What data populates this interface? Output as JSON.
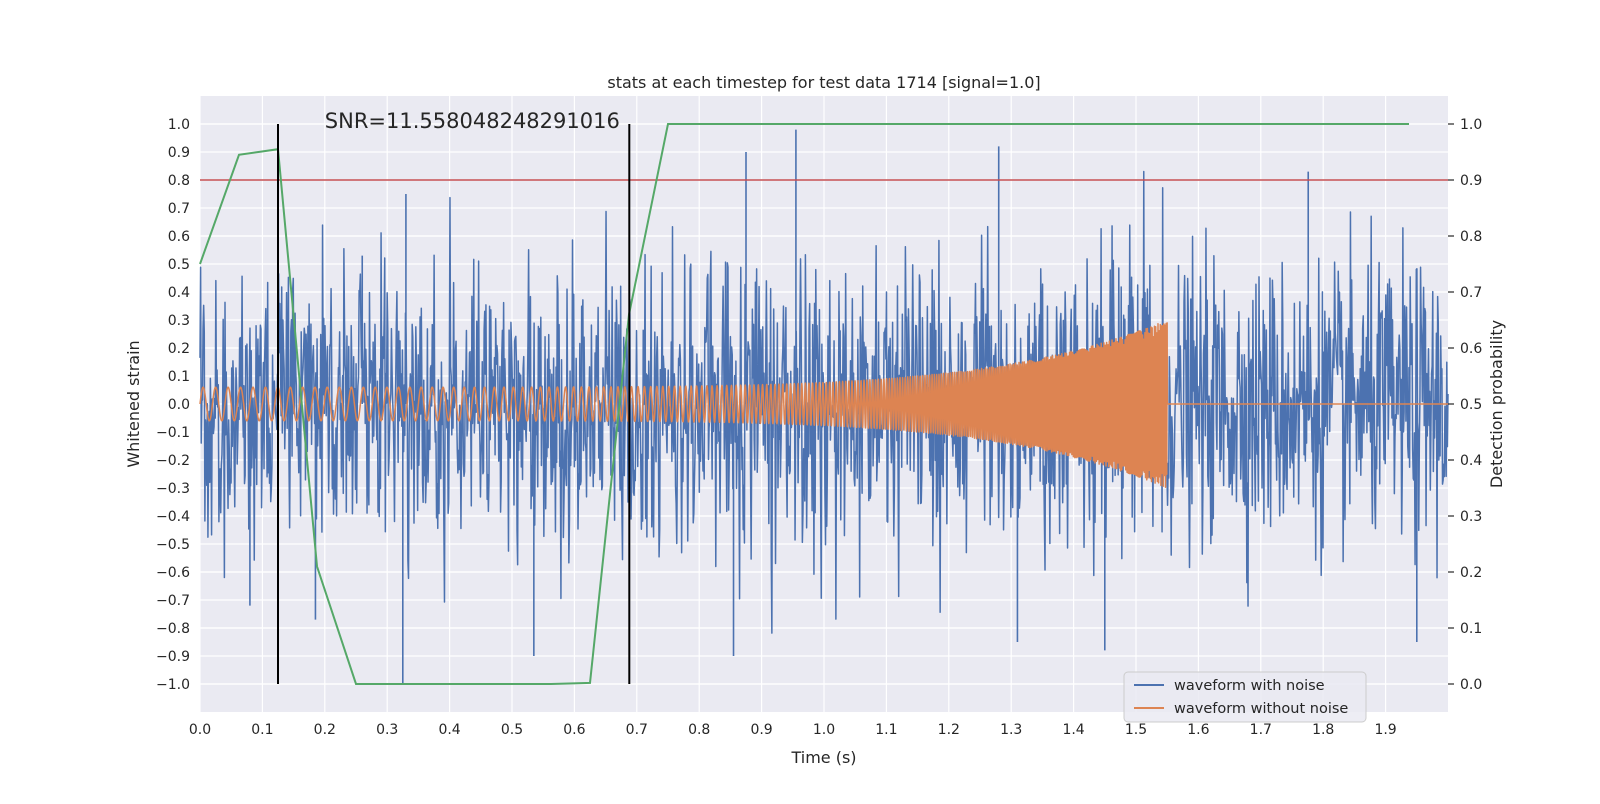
{
  "chart_data": {
    "type": "line",
    "title": "stats at each timestep for test data 1714 [signal=1.0]",
    "xlabel": "Time (s)",
    "ylabel": "Whitened strain",
    "y2label": "Detection probability",
    "xlim": [
      0.0,
      2.0
    ],
    "ylim": [
      -1.1,
      1.1
    ],
    "y2lim": [
      -0.05,
      1.05
    ],
    "x_ticks": [
      0.0,
      0.1,
      0.2,
      0.3,
      0.4,
      0.5,
      0.6,
      0.7,
      0.8,
      0.9,
      1.0,
      1.1,
      1.2,
      1.3,
      1.4,
      1.5,
      1.6,
      1.7,
      1.8,
      1.9
    ],
    "x_tick_labels": [
      "0.0",
      "0.1",
      "0.2",
      "0.3",
      "0.4",
      "0.5",
      "0.6",
      "0.7",
      "0.8",
      "0.9",
      "1.0",
      "1.1",
      "1.2",
      "1.3",
      "1.4",
      "1.5",
      "1.6",
      "1.7",
      "1.8",
      "1.9"
    ],
    "y_ticks": [
      -1.0,
      -0.9,
      -0.8,
      -0.7,
      -0.6,
      -0.5,
      -0.4,
      -0.3,
      -0.2,
      -0.1,
      0.0,
      0.1,
      0.2,
      0.3,
      0.4,
      0.5,
      0.6,
      0.7,
      0.8,
      0.9,
      1.0
    ],
    "y_tick_labels": [
      "−1.0",
      "−0.9",
      "−0.8",
      "−0.7",
      "−0.6",
      "−0.5",
      "−0.4",
      "−0.3",
      "−0.2",
      "−0.1",
      "0.0",
      "0.1",
      "0.2",
      "0.3",
      "0.4",
      "0.5",
      "0.6",
      "0.7",
      "0.8",
      "0.9",
      "1.0"
    ],
    "y2_ticks": [
      0.0,
      0.1,
      0.2,
      0.3,
      0.4,
      0.5,
      0.6,
      0.7,
      0.8,
      0.9,
      1.0
    ],
    "y2_tick_labels": [
      "0.0",
      "0.1",
      "0.2",
      "0.3",
      "0.4",
      "0.5",
      "0.6",
      "0.7",
      "0.8",
      "0.9",
      "1.0"
    ],
    "grid": true,
    "annotation": "SNR=11.558048248291016",
    "annotation_position": [
      0.2,
      0.985
    ],
    "threshold": 0.9,
    "vertical_markers": [
      0.125,
      0.688
    ],
    "series": [
      {
        "name": "waveform with noise",
        "axis": "left",
        "color": "#4c72b0",
        "generated": "noise",
        "amplitude_std": 0.24,
        "samples": 2048,
        "peak_values": [
          [
            0.955,
            0.98
          ],
          [
            0.875,
            0.9
          ],
          [
            1.28,
            0.92
          ],
          [
            1.776,
            0.83
          ],
          [
            0.26,
            0.53
          ],
          [
            0.33,
            0.75
          ],
          [
            0.325,
            -1.0
          ],
          [
            0.535,
            -0.9
          ],
          [
            0.855,
            -0.9
          ],
          [
            1.45,
            -0.88
          ],
          [
            1.95,
            -0.85
          ],
          [
            0.08,
            -0.72
          ],
          [
            0.185,
            -0.77
          ],
          [
            1.31,
            -0.85
          ]
        ]
      },
      {
        "name": "waveform without noise",
        "axis": "left",
        "color": "#dd8452",
        "generated": "chirp",
        "chirp_end": 1.55,
        "amplitude_start": 0.06,
        "amplitude_end": 0.3,
        "freq_start_hz": 50,
        "freq_end_hz": 300
      },
      {
        "name": "detection probability",
        "axis": "right",
        "color": "#55a868",
        "x": [
          0.0,
          0.0625,
          0.125,
          0.1875,
          0.25,
          0.5625,
          0.625,
          0.6875,
          0.75,
          1.9375
        ],
        "values": [
          0.75,
          0.945,
          0.955,
          0.21,
          0.0,
          0.0,
          0.002,
          0.66,
          1.0,
          1.0
        ]
      }
    ],
    "legend": {
      "location": "lower right",
      "entries": [
        "waveform with noise",
        "waveform without noise"
      ]
    },
    "colors": {
      "axes_bg": "#eaeaf2",
      "grid": "#ffffff",
      "threshold_line": "#c44e52",
      "marker_line": "#000000",
      "text": "#262626"
    }
  }
}
